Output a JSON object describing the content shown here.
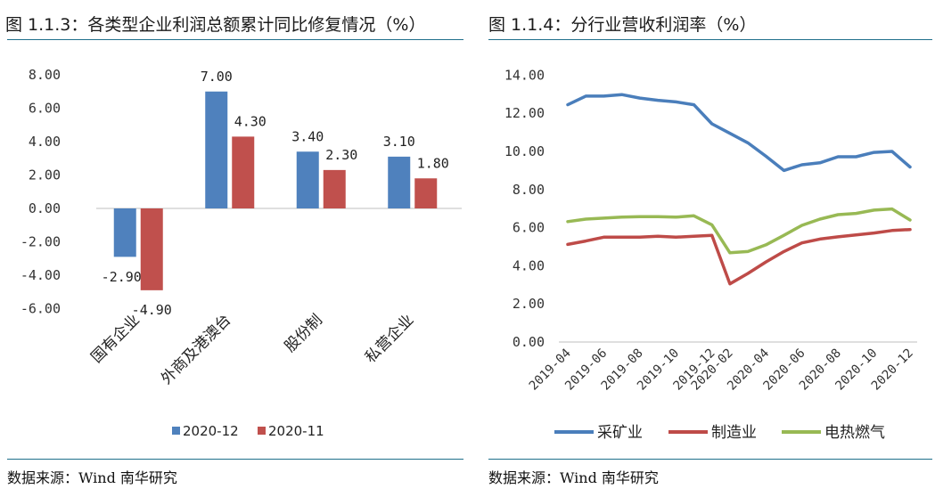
{
  "left": {
    "title": "图 1.1.3：各类型企业利润总额累计同比修复情况（%）",
    "source": "数据来源：Wind 南华研究",
    "chart_data": {
      "type": "bar",
      "categories": [
        "国有企业",
        "外商及港澳台",
        "股份制",
        "私营企业"
      ],
      "series": [
        {
          "name": "2020-12",
          "values": [
            -2.9,
            7.0,
            3.4,
            3.1
          ],
          "labels": [
            "-2.90",
            "7.00",
            "3.40",
            "3.10"
          ],
          "color": "#4f81bd"
        },
        {
          "name": "2020-11",
          "values": [
            -4.9,
            4.3,
            2.3,
            1.8
          ],
          "labels": [
            "-4.90",
            "4.30",
            "2.30",
            "1.80"
          ],
          "color": "#c0504d"
        }
      ],
      "ylim": [
        -6,
        8
      ],
      "yticks": [
        "-6.00",
        "-4.00",
        "-2.00",
        "0.00",
        "2.00",
        "4.00",
        "6.00",
        "8.00"
      ],
      "legend_position": "bottom",
      "grid": false
    }
  },
  "right": {
    "title": "图 1.1.4：分行业营收利润率（%）",
    "source": "数据来源：Wind 南华研究",
    "chart_data": {
      "type": "line",
      "x": [
        "2019-04",
        "2019-05",
        "2019-06",
        "2019-07",
        "2019-08",
        "2019-09",
        "2019-10",
        "2019-11",
        "2019-12",
        "2020-02",
        "2020-03",
        "2020-04",
        "2020-05",
        "2020-06",
        "2020-07",
        "2020-08",
        "2020-09",
        "2020-10",
        "2020-11",
        "2020-12"
      ],
      "xticks": [
        "2019-04",
        "2019-06",
        "2019-08",
        "2019-10",
        "2019-12",
        "2020-02",
        "2020-04",
        "2020-06",
        "2020-08",
        "2020-10",
        "2020-12"
      ],
      "series": [
        {
          "name": "采矿业",
          "color": "#4a7ebb",
          "values": [
            12.45,
            12.9,
            12.9,
            12.98,
            12.8,
            12.68,
            12.6,
            12.45,
            11.45,
            10.95,
            10.45,
            9.75,
            9.0,
            9.3,
            9.4,
            9.72,
            9.72,
            9.95,
            10.0,
            9.18
          ]
        },
        {
          "name": "制造业",
          "color": "#be4b48",
          "values": [
            5.12,
            5.3,
            5.5,
            5.5,
            5.5,
            5.55,
            5.5,
            5.55,
            5.6,
            3.05,
            3.6,
            4.2,
            4.75,
            5.2,
            5.4,
            5.52,
            5.62,
            5.72,
            5.85,
            5.9
          ]
        },
        {
          "name": "电热燃气",
          "color": "#98b954",
          "values": [
            6.32,
            6.45,
            6.5,
            6.55,
            6.58,
            6.58,
            6.55,
            6.62,
            6.15,
            4.68,
            4.75,
            5.1,
            5.6,
            6.12,
            6.45,
            6.68,
            6.75,
            6.92,
            6.98,
            6.4
          ]
        }
      ],
      "ylim": [
        0,
        14
      ],
      "yticks": [
        "0.00",
        "2.00",
        "4.00",
        "6.00",
        "8.00",
        "10.00",
        "12.00",
        "14.00"
      ],
      "legend_position": "bottom",
      "grid": false
    }
  }
}
